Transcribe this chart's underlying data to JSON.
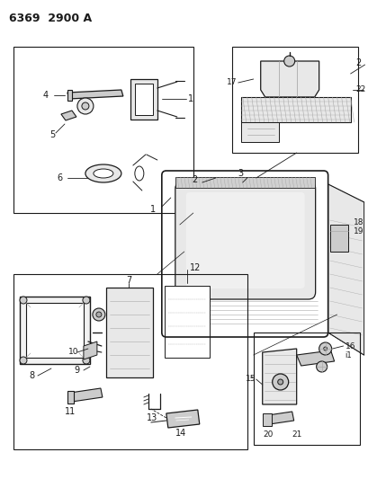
{
  "title": "6369  2900 A",
  "bg_color": "#ffffff",
  "line_color": "#1a1a1a",
  "gray1": "#aaaaaa",
  "gray2": "#cccccc",
  "gray3": "#e8e8e8",
  "fig_width": 4.1,
  "fig_height": 5.33,
  "dpi": 100
}
